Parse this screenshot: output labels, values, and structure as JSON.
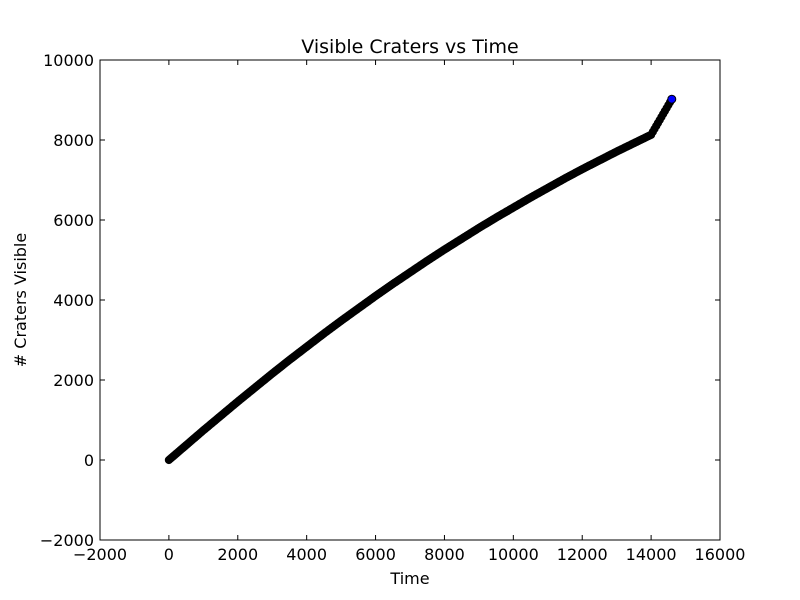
{
  "chart_data": {
    "type": "scatter",
    "title": "Visible Craters vs Time",
    "xlabel": "Time",
    "ylabel": "# Craters Visible",
    "xlim": [
      -2000,
      16000
    ],
    "ylim": [
      -2000,
      10000
    ],
    "xticks": [
      -2000,
      0,
      2000,
      4000,
      6000,
      8000,
      10000,
      12000,
      14000,
      16000
    ],
    "yticks": [
      -2000,
      0,
      2000,
      4000,
      6000,
      8000,
      10000
    ],
    "grid": false,
    "legend": "none",
    "marker_edge_color": "#000000",
    "marker_face_color": "#0000ff",
    "series": [
      {
        "x": [
          0,
          500,
          1000,
          1500,
          2000,
          2500,
          3000,
          3500,
          4000,
          4500,
          5000,
          5500,
          6000,
          6500,
          7000,
          7500,
          8000,
          8500,
          9000,
          9500,
          10000,
          10500,
          11000,
          11500,
          12000,
          12500,
          13000,
          13500,
          14000,
          14600
        ],
        "y": [
          0,
          370,
          740,
          1100,
          1460,
          1810,
          2160,
          2500,
          2830,
          3160,
          3480,
          3790,
          4100,
          4400,
          4690,
          4980,
          5260,
          5530,
          5800,
          6060,
          6310,
          6560,
          6800,
          7040,
          7270,
          7490,
          7710,
          7920,
          8130,
          9020
        ]
      }
    ]
  }
}
